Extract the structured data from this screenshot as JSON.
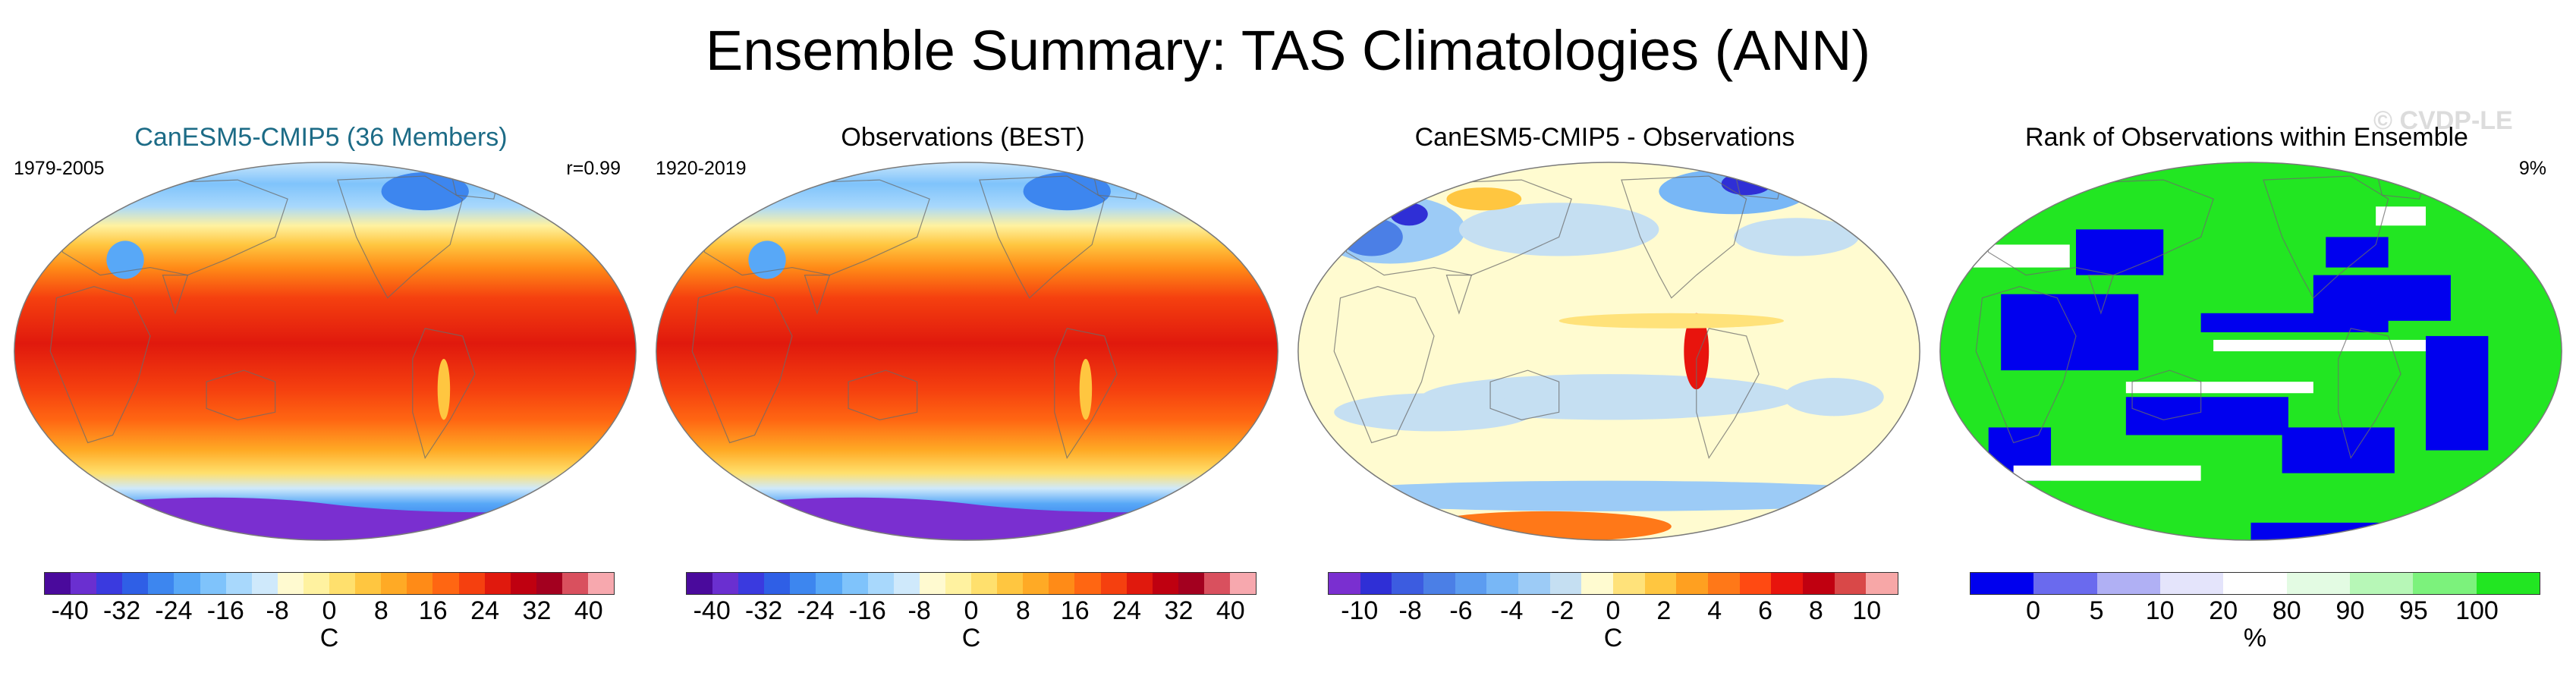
{
  "title": "Ensemble Summary: TAS Climatologies (ANN)",
  "watermark": "© CVDP-LE",
  "colors": {
    "temperature_scale": [
      "#4a0a9c",
      "#6a2fd0",
      "#3a3adf",
      "#2f5fe6",
      "#3d86ef",
      "#58a8f7",
      "#7fc3fb",
      "#a8d8fc",
      "#cfe9fb",
      "#fffad0",
      "#fff2a0",
      "#ffe06d",
      "#ffc640",
      "#ffaa25",
      "#ff8b17",
      "#ff6612",
      "#f5400f",
      "#e0190d",
      "#bf0010",
      "#a3001f",
      "#d9505e",
      "#f7a8ae"
    ],
    "difference_scale": [
      "#7a2fd0",
      "#2f2fd6",
      "#3c5ce0",
      "#4b7fe6",
      "#5c9cf0",
      "#78b7f6",
      "#9ccbf6",
      "#c5dff2",
      "#fffbd0",
      "#ffe27a",
      "#ffc640",
      "#ffa020",
      "#ff7818",
      "#ff4a12",
      "#e8140d",
      "#c00010",
      "#d94848",
      "#f7a7a7"
    ],
    "rank_scale": [
      "#0000ee",
      "#6a6aee",
      "#b0b0f4",
      "#e4e4fb",
      "#ffffff",
      "#e3fbe3",
      "#b7f7b7",
      "#7cf27c",
      "#22e622"
    ]
  },
  "panels": [
    {
      "title": "CanESM5-CMIP5 (36 Members)",
      "title_color": "#1c6b86",
      "left_label": "1979-2005",
      "right_label": "r=0.99",
      "field": "temperature",
      "colorbar": {
        "scale": "temperature_scale",
        "ticks": [
          "-40",
          "-32",
          "-24",
          "-16",
          "-8",
          "0",
          "8",
          "16",
          "24",
          "32",
          "40"
        ],
        "unit": "C"
      }
    },
    {
      "title": "Observations (BEST)",
      "title_color": "#000000",
      "left_label": "1920-2019",
      "right_label": "",
      "field": "temperature",
      "colorbar": {
        "scale": "temperature_scale",
        "ticks": [
          "-40",
          "-32",
          "-24",
          "-16",
          "-8",
          "0",
          "8",
          "16",
          "24",
          "32",
          "40"
        ],
        "unit": "C"
      }
    },
    {
      "title": "CanESM5-CMIP5 - Observations",
      "title_color": "#000000",
      "left_label": "",
      "right_label": "",
      "field": "difference",
      "colorbar": {
        "scale": "difference_scale",
        "ticks": [
          "-10",
          "-8",
          "-6",
          "-4",
          "-2",
          "0",
          "2",
          "4",
          "6",
          "8",
          "10"
        ],
        "unit": "C"
      }
    },
    {
      "title": "Rank of Observations within Ensemble",
      "title_color": "#000000",
      "left_label": "",
      "right_label": "9%",
      "field": "rank",
      "colorbar": {
        "scale": "rank_scale",
        "ticks": [
          "0",
          "5",
          "10",
          "20",
          "80",
          "90",
          "95",
          "100"
        ],
        "unit": "%"
      }
    }
  ]
}
